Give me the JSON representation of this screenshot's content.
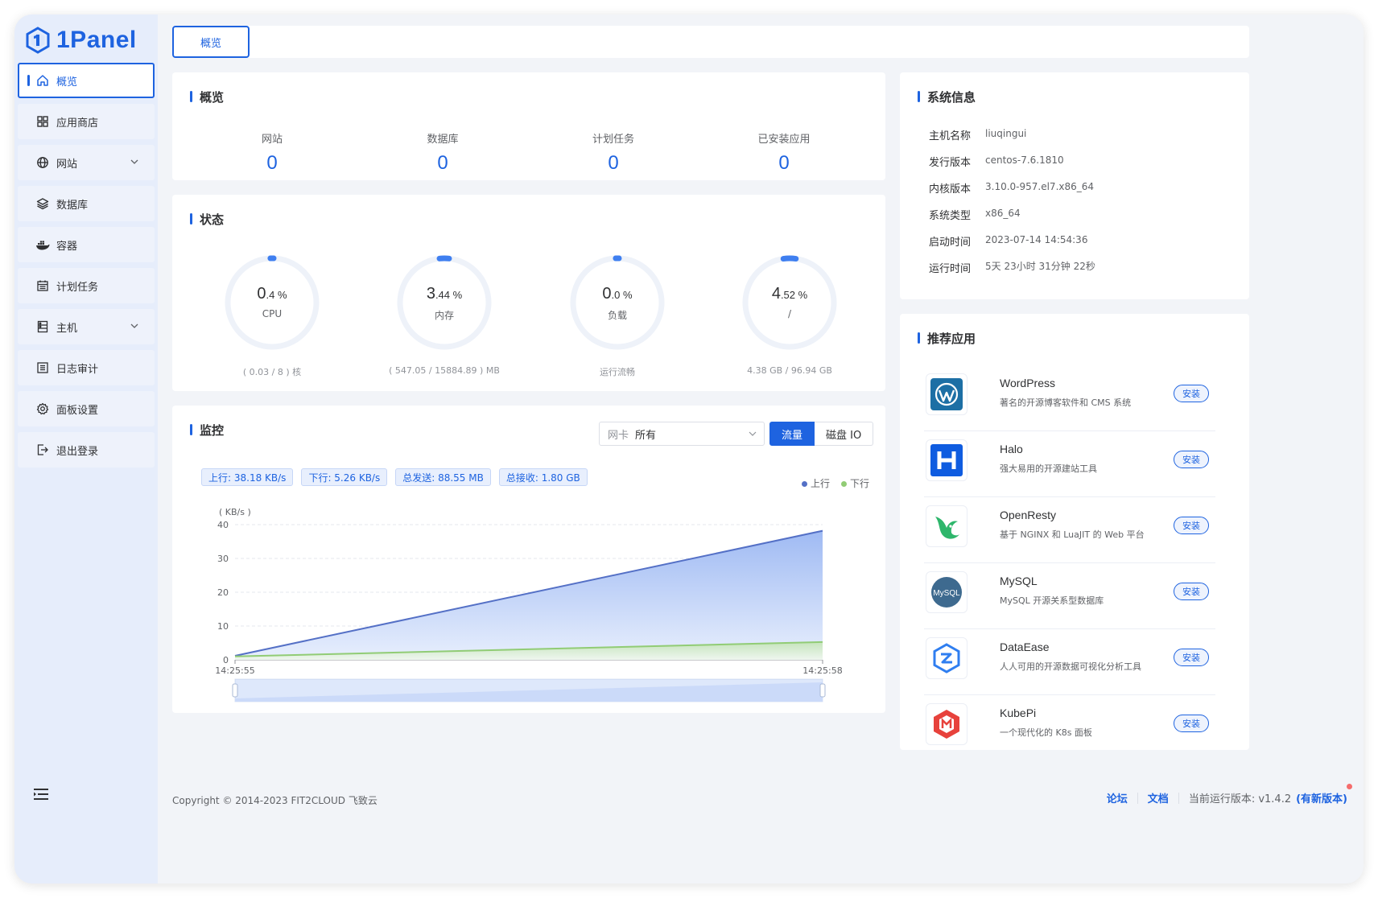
{
  "app": {
    "name": "1Panel"
  },
  "colors": {
    "accent": "#1e63e0",
    "up": "#5470c6",
    "down": "#91cc75",
    "danger": "#f56c6c"
  },
  "sidebar": {
    "items": [
      {
        "label": "概览",
        "icon": "home-icon",
        "active": true
      },
      {
        "label": "应用商店",
        "icon": "grid-icon"
      },
      {
        "label": "网站",
        "icon": "globe-icon",
        "chevron": true
      },
      {
        "label": "数据库",
        "icon": "layers-icon"
      },
      {
        "label": "容器",
        "icon": "docker-icon"
      },
      {
        "label": "计划任务",
        "icon": "calendar-icon"
      },
      {
        "label": "主机",
        "icon": "server-icon",
        "chevron": true
      },
      {
        "label": "日志审计",
        "icon": "list-icon"
      },
      {
        "label": "面板设置",
        "icon": "gear-icon"
      },
      {
        "label": "退出登录",
        "icon": "logout-icon"
      }
    ]
  },
  "tabs": {
    "active_label": "概览"
  },
  "overview": {
    "title": "概览",
    "stats": [
      {
        "label": "网站",
        "value": "0"
      },
      {
        "label": "数据库",
        "value": "0"
      },
      {
        "label": "计划任务",
        "value": "0"
      },
      {
        "label": "已安装应用",
        "value": "0"
      }
    ]
  },
  "status": {
    "title": "状态",
    "gauges": [
      {
        "int": "0",
        "dec": ".4 %",
        "label": "CPU",
        "foot": "( 0.03 / 8 ) 核",
        "percent": 0.4
      },
      {
        "int": "3",
        "dec": ".44 %",
        "label": "内存",
        "foot": "( 547.05 / 15884.89 ) MB",
        "percent": 3.44
      },
      {
        "int": "0",
        "dec": ".0 %",
        "label": "负载",
        "foot": "运行流畅",
        "percent": 0.0
      },
      {
        "int": "4",
        "dec": ".52 %",
        "label": "/",
        "foot": "4.38 GB / 96.94 GB",
        "percent": 4.52
      }
    ]
  },
  "monitor": {
    "title": "监控",
    "select_prefix": "网卡",
    "select_value": "所有",
    "seg_on": "流量",
    "seg_off": "磁盘 IO",
    "chips": [
      "上行: 38.18 KB/s",
      "下行: 5.26 KB/s",
      "总发送: 88.55 MB",
      "总接收: 1.80 GB"
    ],
    "legend_up": "上行",
    "legend_down": "下行"
  },
  "chart_data": {
    "type": "area",
    "ylabel": "( KB/s )",
    "ylim": [
      0,
      40
    ],
    "yticks": [
      "0",
      "10",
      "20",
      "30",
      "40"
    ],
    "x": [
      "14:25:55",
      "14:25:58"
    ],
    "series": [
      {
        "name": "上行",
        "values": [
          1.2,
          38.18
        ]
      },
      {
        "name": "下行",
        "values": [
          1.0,
          5.26
        ]
      }
    ]
  },
  "sysinfo": {
    "title": "系统信息",
    "rows": [
      {
        "k": "主机名称",
        "v": "liuqingui"
      },
      {
        "k": "发行版本",
        "v": "centos-7.6.1810"
      },
      {
        "k": "内核版本",
        "v": "3.10.0-957.el7.x86_64"
      },
      {
        "k": "系统类型",
        "v": "x86_64"
      },
      {
        "k": "启动时间",
        "v": "2023-07-14 14:54:36"
      },
      {
        "k": "运行时间",
        "v": "5天 23小时 31分钟 22秒"
      }
    ]
  },
  "apps": {
    "title": "推荐应用",
    "install_label": "安装",
    "items": [
      {
        "name": "WordPress",
        "desc": "著名的开源博客软件和 CMS 系统",
        "icon": "wordpress-icon"
      },
      {
        "name": "Halo",
        "desc": "强大易用的开源建站工具",
        "icon": "halo-icon"
      },
      {
        "name": "OpenResty",
        "desc": "基于 NGINX 和 LuaJIT 的 Web 平台",
        "icon": "openresty-icon"
      },
      {
        "name": "MySQL",
        "desc": "MySQL 开源关系型数据库",
        "icon": "mysql-icon",
        "icon_text": "MySQL"
      },
      {
        "name": "DataEase",
        "desc": "人人可用的开源数据可视化分析工具",
        "icon": "dataease-icon"
      },
      {
        "name": "KubePi",
        "desc": "一个现代化的 K8s 面板",
        "icon": "kubepi-icon"
      }
    ]
  },
  "footer": {
    "copyright": "Copyright © 2014-2023 FIT2CLOUD 飞致云",
    "forum": "论坛",
    "docs": "文档",
    "version_label": "当前运行版本: v1.4.2",
    "new_version": "(有新版本)"
  }
}
